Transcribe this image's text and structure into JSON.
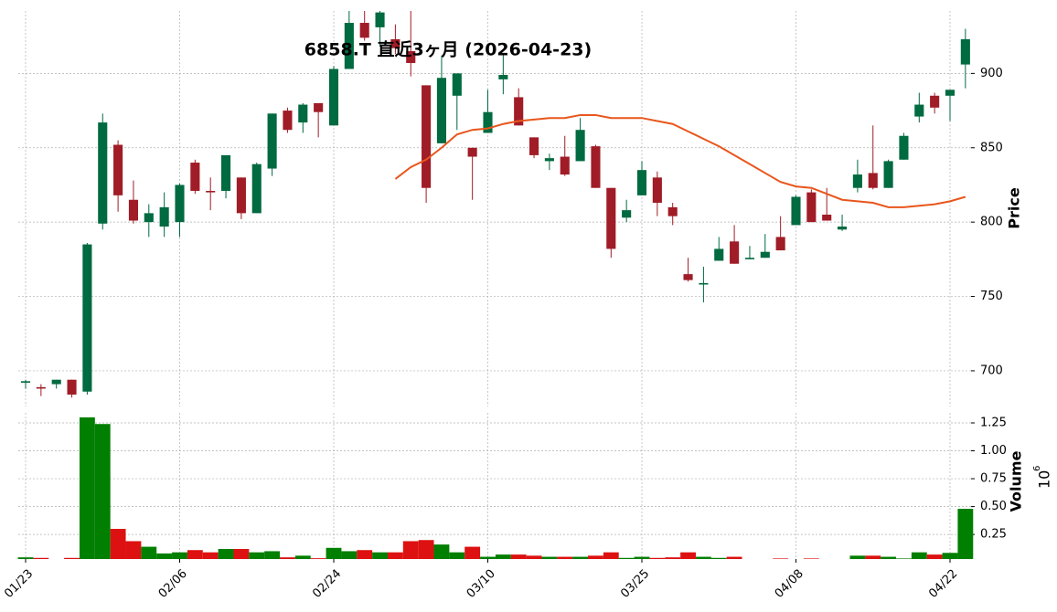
{
  "chart_data": {
    "type": "candlestick",
    "title": "6858.T 直近3ヶ月 (2026-04-23)",
    "ylabel": "Price",
    "categories": [
      "01/23",
      null,
      null,
      null,
      null,
      null,
      null,
      null,
      null,
      null,
      "02/06",
      null,
      null,
      null,
      null,
      null,
      null,
      null,
      null,
      null,
      "02/24",
      null,
      null,
      null,
      null,
      null,
      null,
      null,
      null,
      null,
      "03/10",
      null,
      null,
      null,
      null,
      null,
      null,
      null,
      null,
      null,
      "03/25",
      null,
      null,
      null,
      null,
      null,
      null,
      null,
      null,
      null,
      "04/08",
      null,
      null,
      null,
      null,
      null,
      null,
      null,
      null,
      null,
      "04/22",
      null
    ],
    "open": [
      692,
      689,
      691,
      694,
      686,
      799,
      852,
      815,
      800,
      797,
      800,
      840,
      821,
      821,
      830,
      806,
      836,
      875,
      867,
      880,
      865,
      903,
      934,
      931,
      923,
      915,
      892,
      853,
      885,
      850,
      860,
      896,
      884,
      857,
      841,
      844,
      841,
      851,
      823,
      803,
      818,
      830,
      810,
      765,
      758,
      774,
      787,
      775,
      776,
      790,
      798,
      820,
      805,
      795,
      823,
      833,
      823,
      842,
      871,
      885,
      885,
      906
    ],
    "high": [
      694,
      691,
      694,
      694,
      786,
      873,
      855,
      828,
      812,
      820,
      826,
      842,
      830,
      845,
      830,
      840,
      873,
      877,
      880,
      880,
      905,
      942,
      942,
      942,
      933,
      942,
      892,
      912,
      900,
      850,
      889,
      913,
      890,
      857,
      846,
      858,
      870,
      852,
      823,
      815,
      841,
      834,
      813,
      776,
      770,
      790,
      798,
      784,
      792,
      804,
      818,
      822,
      823,
      805,
      842,
      865,
      842,
      860,
      887,
      887,
      889,
      930
    ],
    "low": [
      688,
      683,
      688,
      682,
      684,
      795,
      807,
      799,
      790,
      790,
      790,
      819,
      808,
      816,
      802,
      806,
      831,
      860,
      860,
      857,
      865,
      903,
      922,
      918,
      913,
      898,
      813,
      853,
      862,
      815,
      860,
      886,
      865,
      843,
      835,
      831,
      841,
      823,
      776,
      800,
      818,
      804,
      798,
      760,
      746,
      774,
      772,
      775,
      776,
      781,
      798,
      800,
      801,
      794,
      820,
      822,
      823,
      842,
      867,
      873,
      868,
      890
    ],
    "close": [
      693,
      688,
      694,
      684,
      785,
      867,
      818,
      801,
      806,
      810,
      825,
      821,
      820,
      845,
      806,
      839,
      873,
      862,
      879,
      874,
      903,
      934,
      924,
      941,
      917,
      907,
      823,
      897,
      900,
      844,
      874,
      899,
      865,
      845,
      843,
      832,
      862,
      823,
      782,
      808,
      835,
      813,
      804,
      761,
      759,
      782,
      772,
      776,
      780,
      781,
      817,
      800,
      801,
      797,
      832,
      823,
      841,
      858,
      879,
      877,
      889,
      923
    ],
    "up_color": "#006a40",
    "down_color": "#a01c26",
    "moving_average": {
      "color": "#e8561c",
      "values": [
        null,
        null,
        null,
        null,
        null,
        null,
        null,
        null,
        null,
        null,
        null,
        null,
        null,
        null,
        null,
        null,
        null,
        null,
        null,
        null,
        null,
        null,
        null,
        null,
        829,
        837,
        842,
        850,
        859,
        862,
        863,
        866,
        868,
        869,
        870,
        870,
        872,
        872,
        870,
        870,
        870,
        868,
        866,
        861,
        856,
        851,
        845,
        839,
        833,
        827,
        824,
        823,
        819,
        815,
        814,
        813,
        810,
        810,
        811,
        812,
        814,
        817
      ]
    },
    "ylim": [
      676,
      942
    ],
    "yticks": [
      700,
      750,
      800,
      850,
      900
    ],
    "grid": true,
    "volume": {
      "label": "Volume",
      "multiplier_base": "10",
      "multiplier_exponent": "6",
      "up_color": "#007f00",
      "down_color": "#dd1111",
      "values": [
        0.045,
        0.04,
        0.03,
        0.04,
        1.3,
        1.24,
        0.3,
        0.19,
        0.14,
        0.08,
        0.09,
        0.11,
        0.09,
        0.12,
        0.12,
        0.09,
        0.1,
        0.045,
        0.06,
        0.037,
        0.13,
        0.1,
        0.11,
        0.09,
        0.09,
        0.19,
        0.2,
        0.16,
        0.09,
        0.14,
        0.05,
        0.07,
        0.07,
        0.06,
        0.05,
        0.05,
        0.05,
        0.06,
        0.09,
        0.04,
        0.05,
        0.04,
        0.045,
        0.09,
        0.05,
        0.04,
        0.05,
        0.03,
        0.03,
        0.035,
        0.03,
        0.035,
        0.03,
        0.03,
        0.06,
        0.06,
        0.05,
        0.035,
        0.09,
        0.07,
        0.085,
        0.48
      ],
      "ylim": [
        0.03,
        1.34
      ],
      "yticks": [
        0.25,
        {
          "value": 0.5,
          "label": "0.50"
        },
        0.75,
        {
          "value": 1,
          "label": "1.00"
        },
        1.25
      ]
    }
  }
}
